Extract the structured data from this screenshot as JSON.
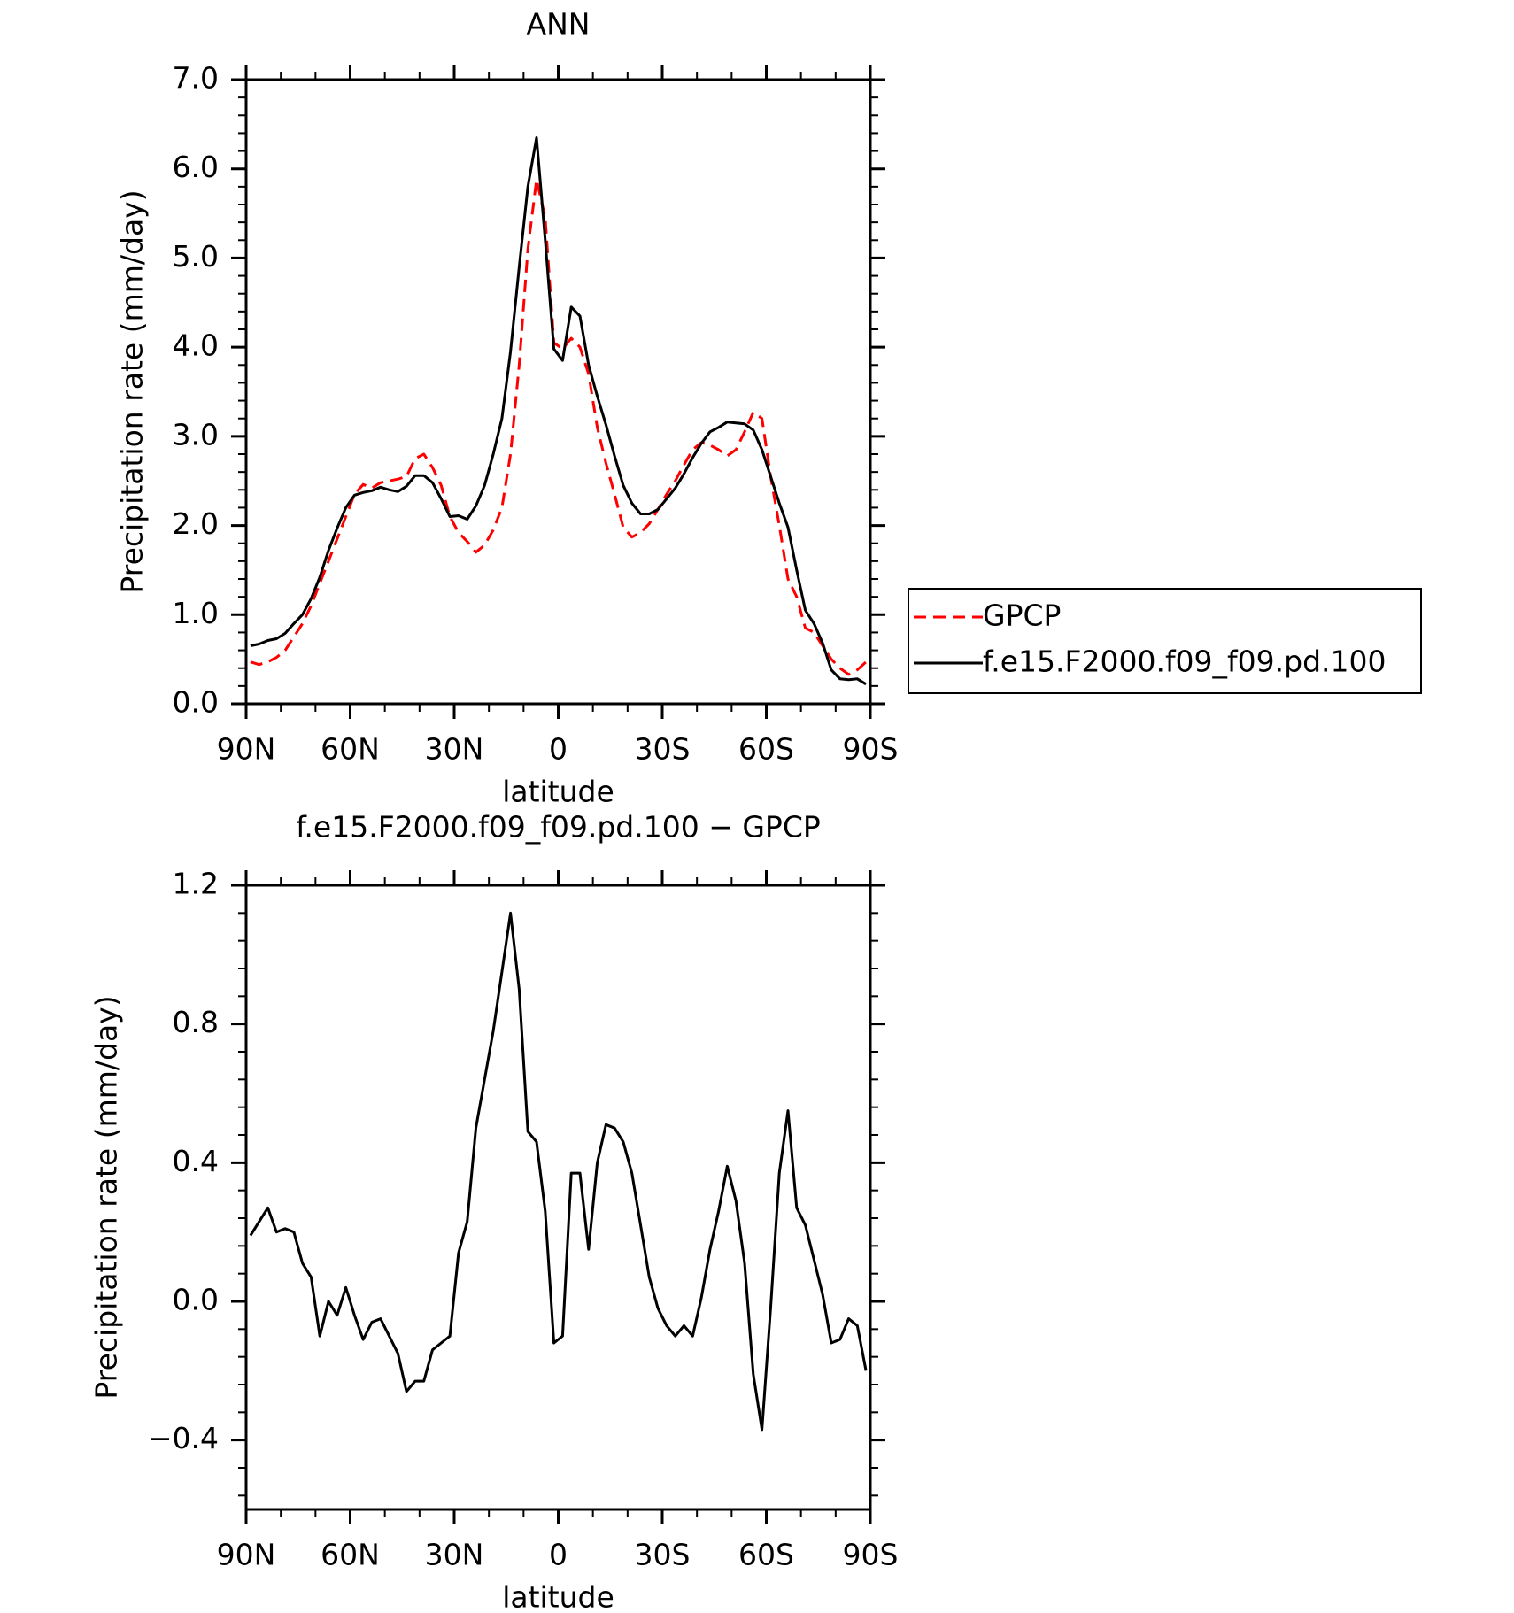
{
  "chart_data": [
    {
      "type": "line",
      "title": "ANN",
      "xlabel": "latitude",
      "ylabel": "Precipitation rate (mm/day)",
      "x": [
        88.75,
        86.25,
        83.75,
        81.25,
        78.75,
        76.25,
        73.75,
        71.25,
        68.75,
        66.25,
        63.75,
        61.25,
        58.75,
        56.25,
        53.75,
        51.25,
        48.75,
        46.25,
        43.75,
        41.25,
        38.75,
        36.25,
        33.75,
        31.25,
        28.75,
        26.25,
        23.75,
        21.25,
        18.75,
        16.25,
        13.75,
        11.25,
        8.75,
        6.25,
        3.75,
        1.25,
        -1.25,
        -3.75,
        -6.25,
        -8.75,
        -11.25,
        -13.75,
        -16.25,
        -18.75,
        -21.25,
        -23.75,
        -26.25,
        -28.75,
        -31.25,
        -33.75,
        -36.25,
        -38.75,
        -41.25,
        -43.75,
        -46.25,
        -48.75,
        -51.25,
        -53.75,
        -56.25,
        -58.75,
        -61.25,
        -63.75,
        -66.25,
        -68.75,
        -71.25,
        -73.75,
        -76.25,
        -78.75,
        -81.25,
        -83.75,
        -86.25,
        -88.75
      ],
      "xlim": [
        90,
        -90
      ],
      "xticks": [
        {
          "value": 90,
          "label": "90N"
        },
        {
          "value": 60,
          "label": "60N"
        },
        {
          "value": 30,
          "label": "30N"
        },
        0,
        {
          "value": -30,
          "label": "30S"
        },
        {
          "value": -60,
          "label": "60S"
        },
        {
          "value": -90,
          "label": "90S"
        }
      ],
      "ylim": [
        0,
        7
      ],
      "yticks": [
        {
          "value": 0,
          "label": "0.0"
        },
        {
          "value": 1,
          "label": "1.0"
        },
        {
          "value": 2,
          "label": "2.0"
        },
        {
          "value": 3,
          "label": "3.0"
        },
        {
          "value": 4,
          "label": "4.0"
        },
        {
          "value": 5,
          "label": "5.0"
        },
        {
          "value": 6,
          "label": "6.0"
        },
        {
          "value": 7,
          "label": "7.0"
        }
      ],
      "legend": "right",
      "series": [
        {
          "name": "GPCP",
          "color": "#ff0000",
          "dashed": true,
          "values": [
            0.47,
            0.44,
            0.47,
            0.52,
            0.6,
            0.75,
            0.9,
            1.1,
            1.35,
            1.6,
            1.85,
            2.1,
            2.35,
            2.46,
            2.42,
            2.48,
            2.5,
            2.52,
            2.55,
            2.75,
            2.8,
            2.65,
            2.45,
            2.1,
            1.92,
            1.82,
            1.7,
            1.78,
            1.95,
            2.2,
            2.8,
            3.8,
            5.1,
            5.88,
            5.45,
            4.05,
            3.98,
            4.1,
            4.0,
            3.7,
            3.1,
            2.7,
            2.35,
            1.98,
            1.87,
            1.92,
            2.02,
            2.18,
            2.35,
            2.5,
            2.68,
            2.85,
            2.93,
            2.9,
            2.85,
            2.78,
            2.85,
            3.05,
            3.27,
            3.2,
            2.55,
            2.0,
            1.4,
            1.2,
            0.85,
            0.8,
            0.65,
            0.5,
            0.4,
            0.33,
            0.38,
            0.47
          ]
        },
        {
          "name": "f.e15.F2000.f09_f09.pd.100",
          "color": "#000000",
          "dashed": false,
          "values": [
            0.65,
            0.67,
            0.71,
            0.73,
            0.79,
            0.9,
            1.0,
            1.18,
            1.42,
            1.72,
            1.97,
            2.2,
            2.34,
            2.37,
            2.39,
            2.43,
            2.4,
            2.38,
            2.44,
            2.56,
            2.56,
            2.48,
            2.3,
            2.1,
            2.11,
            2.07,
            2.22,
            2.45,
            2.8,
            3.2,
            3.95,
            4.9,
            5.8,
            6.35,
            5.2,
            3.98,
            3.85,
            4.45,
            4.35,
            3.8,
            3.45,
            3.13,
            2.78,
            2.45,
            2.25,
            2.13,
            2.13,
            2.18,
            2.3,
            2.42,
            2.58,
            2.76,
            2.92,
            3.05,
            3.1,
            3.16,
            3.15,
            3.14,
            3.07,
            2.85,
            2.55,
            2.25,
            1.98,
            1.5,
            1.05,
            0.9,
            0.68,
            0.38,
            0.28,
            0.27,
            0.28,
            0.22
          ]
        }
      ]
    },
    {
      "type": "line",
      "title": "f.e15.F2000.f09_f09.pd.100 − GPCP",
      "xlabel": "latitude",
      "ylabel": "Precipitation rate (mm/day)",
      "x": [
        88.75,
        86.25,
        83.75,
        81.25,
        78.75,
        76.25,
        73.75,
        71.25,
        68.75,
        66.25,
        63.75,
        61.25,
        58.75,
        56.25,
        53.75,
        51.25,
        48.75,
        46.25,
        43.75,
        41.25,
        38.75,
        36.25,
        33.75,
        31.25,
        28.75,
        26.25,
        23.75,
        21.25,
        18.75,
        16.25,
        13.75,
        11.25,
        8.75,
        6.25,
        3.75,
        1.25,
        -1.25,
        -3.75,
        -6.25,
        -8.75,
        -11.25,
        -13.75,
        -16.25,
        -18.75,
        -21.25,
        -23.75,
        -26.25,
        -28.75,
        -31.25,
        -33.75,
        -36.25,
        -38.75,
        -41.25,
        -43.75,
        -46.25,
        -48.75,
        -51.25,
        -53.75,
        -56.25,
        -58.75,
        -61.25,
        -63.75,
        -66.25,
        -68.75,
        -71.25,
        -73.75,
        -76.25,
        -78.75,
        -81.25,
        -83.75,
        -86.25,
        -88.75
      ],
      "xlim": [
        90,
        -90
      ],
      "xticks": [
        {
          "value": 90,
          "label": "90N"
        },
        {
          "value": 60,
          "label": "60N"
        },
        {
          "value": 30,
          "label": "30N"
        },
        0,
        {
          "value": -30,
          "label": "30S"
        },
        {
          "value": -60,
          "label": "60S"
        },
        {
          "value": -90,
          "label": "90S"
        }
      ],
      "ylim": [
        -0.6,
        1.2
      ],
      "yticks": [
        {
          "value": -0.4,
          "label": "−0.4"
        },
        {
          "value": 0,
          "label": "0.0"
        },
        0.4,
        0.8,
        1.2
      ],
      "series": [
        {
          "color": "#000000",
          "dashed": false,
          "values": [
            0.19,
            0.23,
            0.27,
            0.2,
            0.21,
            0.2,
            0.11,
            0.07,
            -0.1,
            0.0,
            -0.04,
            0.04,
            -0.04,
            -0.11,
            -0.06,
            -0.05,
            -0.1,
            -0.15,
            -0.26,
            -0.23,
            -0.23,
            -0.14,
            -0.12,
            -0.1,
            0.14,
            0.23,
            0.5,
            0.64,
            0.78,
            0.95,
            1.12,
            0.9,
            0.49,
            0.46,
            0.26,
            -0.12,
            -0.1,
            0.37,
            0.37,
            0.15,
            0.4,
            0.51,
            0.5,
            0.46,
            0.37,
            0.22,
            0.07,
            -0.02,
            -0.07,
            -0.1,
            -0.07,
            -0.1,
            0.01,
            0.15,
            0.26,
            0.39,
            0.29,
            0.11,
            -0.21,
            -0.37,
            -0.02,
            0.37,
            0.55,
            0.27,
            0.22,
            0.12,
            0.02,
            -0.12,
            -0.11,
            -0.05,
            -0.07,
            -0.2
          ]
        }
      ]
    }
  ]
}
